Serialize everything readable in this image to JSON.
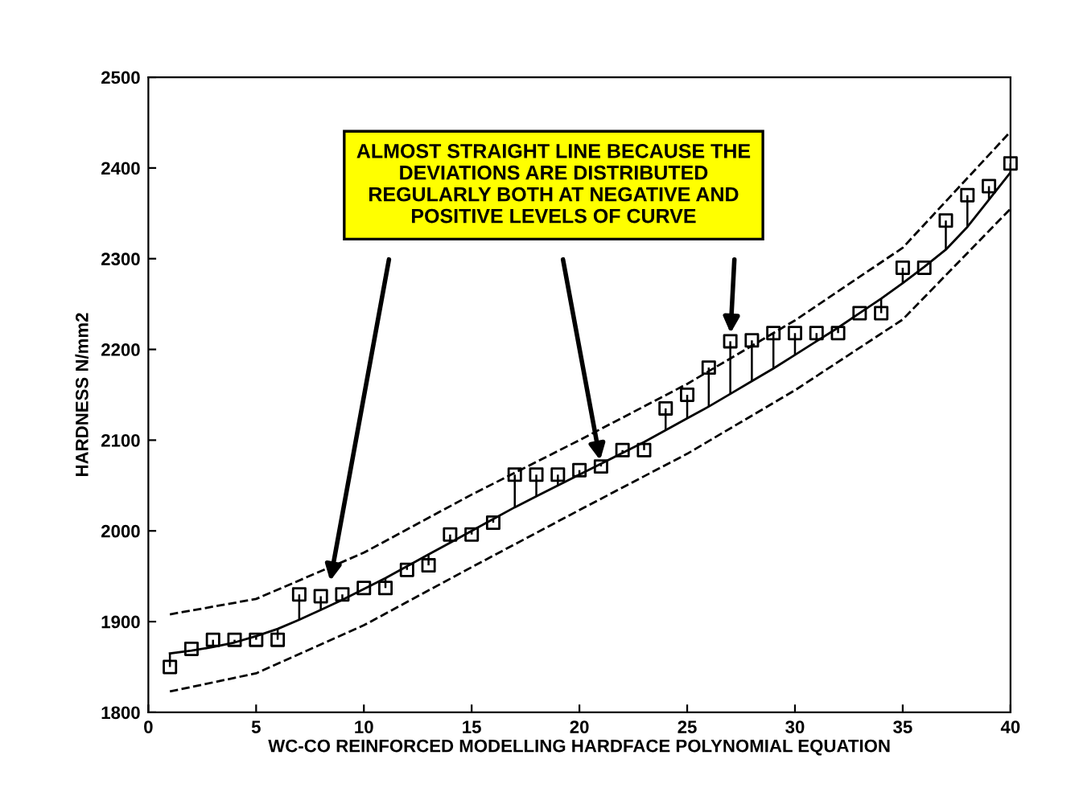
{
  "chart_data": {
    "type": "scatter",
    "xlabel": "WC-CO REINFORCED MODELLING HARDFACE POLYNOMIAL EQUATION",
    "ylabel": "HARDNESS N/mm2",
    "xlim": [
      0,
      40
    ],
    "ylim": [
      1800,
      2500
    ],
    "xticks": [
      0,
      5,
      10,
      15,
      20,
      25,
      30,
      35,
      40
    ],
    "yticks": [
      1800,
      1900,
      2000,
      2100,
      2200,
      2300,
      2400,
      2500
    ],
    "grid": false,
    "series": [
      {
        "marker": "square",
        "color": "#000000",
        "x": [
          1,
          2,
          3,
          4,
          5,
          6,
          7,
          8,
          9,
          10,
          11,
          12,
          13,
          14,
          15,
          16,
          17,
          18,
          19,
          20,
          21,
          22,
          23,
          24,
          25,
          26,
          27,
          28,
          29,
          30,
          31,
          32,
          33,
          34,
          35,
          36,
          37,
          38,
          39,
          40
        ],
        "values": [
          1850,
          1870,
          1880,
          1880,
          1880,
          1880,
          1930,
          1928,
          1930,
          1937,
          1937,
          1957,
          1962,
          1996,
          1996,
          2009,
          2062,
          2062,
          2062,
          2067,
          2071,
          2089,
          2089,
          2135,
          2150,
          2180,
          2209,
          2210,
          2218,
          2218,
          2218,
          2218,
          2240,
          2240,
          2290,
          2290,
          2342,
          2370,
          2380,
          2405
        ],
        "errors": [
          [
            1850,
            1865
          ],
          null,
          [
            1872,
            1880
          ],
          [
            1877,
            1880
          ],
          [
            1880,
            1884
          ],
          [
            1880,
            1892
          ],
          [
            1902,
            1930
          ],
          [
            1913,
            1928
          ],
          [
            1924,
            1930
          ],
          null,
          [
            1937,
            1948
          ],
          [
            1957,
            1961
          ],
          [
            1962,
            1974
          ],
          [
            1987,
            1996
          ],
          [
            1996,
            2000
          ],
          [
            2009,
            2013
          ],
          [
            2026,
            2062
          ],
          [
            2038,
            2062
          ],
          [
            2050,
            2062
          ],
          [
            2062,
            2067
          ],
          [
            2071,
            2074
          ],
          [
            2086,
            2089
          ],
          [
            2089,
            2098
          ],
          [
            2111,
            2135
          ],
          [
            2124,
            2150
          ],
          [
            2137,
            2180
          ],
          [
            2151,
            2209
          ],
          [
            2165,
            2210
          ],
          [
            2179,
            2218
          ],
          [
            2194,
            2218
          ],
          [
            2209,
            2218
          ],
          [
            2218,
            2224
          ],
          null,
          [
            2240,
            2256
          ],
          [
            2273,
            2290
          ],
          null,
          [
            2310,
            2342
          ],
          [
            2335,
            2370
          ],
          [
            2365,
            2380
          ],
          [
            2395,
            2405
          ]
        ]
      },
      {
        "type": "line",
        "line_style": "solid",
        "color": "#000000",
        "x": [
          1,
          2,
          3,
          4,
          5,
          6,
          7,
          8,
          9,
          10,
          11,
          12,
          13,
          14,
          15,
          16,
          17,
          18,
          19,
          20,
          21,
          22,
          23,
          24,
          25,
          26,
          27,
          28,
          29,
          30,
          31,
          32,
          33,
          34,
          35,
          36,
          37,
          38,
          39,
          40
        ],
        "values": [
          1865,
          1868,
          1872,
          1877,
          1884,
          1892,
          1902,
          1913,
          1924,
          1936,
          1948,
          1961,
          1974,
          1987,
          2000,
          2013,
          2026,
          2038,
          2050,
          2062,
          2074,
          2086,
          2098,
          2111,
          2124,
          2137,
          2151,
          2165,
          2179,
          2194,
          2209,
          2224,
          2240,
          2256,
          2273,
          2291,
          2310,
          2335,
          2365,
          2395
        ]
      },
      {
        "type": "line",
        "line_style": "dashed",
        "color": "#000000",
        "x": [
          1,
          5,
          10,
          15,
          20,
          25,
          30,
          35,
          40
        ],
        "values": [
          1908,
          1925,
          1976,
          2040,
          2100,
          2162,
          2232,
          2312,
          2440
        ]
      },
      {
        "type": "line",
        "line_style": "dashed",
        "color": "#000000",
        "x": [
          1,
          5,
          10,
          15,
          20,
          25,
          30,
          35,
          40
        ],
        "values": [
          1823,
          1843,
          1896,
          1960,
          2023,
          2085,
          2155,
          2233,
          2355
        ]
      }
    ],
    "annotations": [
      "ALMOST STRAIGHT LINE BECAUSE THE\nDEVIATIONS ARE DISTRIBUTED\nREGULARLY BOTH AT NEGATIVE AND\nPOSITIVE LEVELS OF CURVE"
    ]
  }
}
